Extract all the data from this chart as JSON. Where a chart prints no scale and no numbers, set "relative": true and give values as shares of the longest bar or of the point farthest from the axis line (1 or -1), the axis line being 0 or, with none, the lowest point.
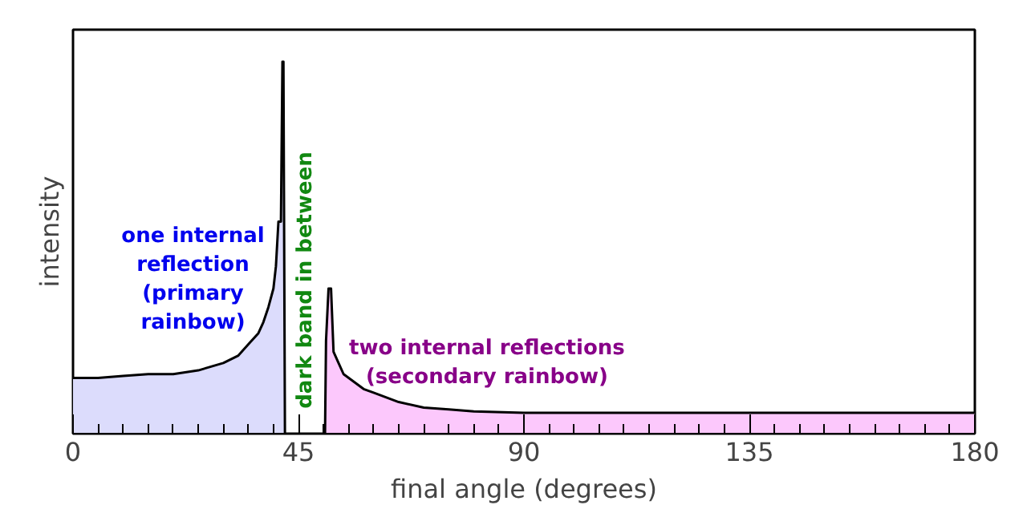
{
  "chart_data": {
    "type": "area",
    "relative": true,
    "xlabel": "final angle (degrees)",
    "ylabel": "intensity",
    "xlim": [
      0,
      180
    ],
    "xticks": [
      0,
      45,
      90,
      135,
      180
    ],
    "grid": false,
    "series": [
      {
        "color": "#dcdcfc",
        "x": [
          0,
          5,
          10,
          15,
          20,
          25,
          30,
          33,
          35,
          37,
          38,
          39,
          40,
          40.5,
          41,
          41.5,
          41.8,
          42,
          42.3
        ],
        "values": [
          0.15,
          0.15,
          0.155,
          0.16,
          0.16,
          0.17,
          0.19,
          0.21,
          0.24,
          0.27,
          0.3,
          0.34,
          0.39,
          0.45,
          0.57,
          0.57,
          1.0,
          1.0,
          0
        ]
      },
      {
        "color": "#fcc8fc",
        "x": [
          50.3,
          50.5,
          51,
          51.5,
          52,
          53,
          54,
          56,
          58,
          60,
          65,
          70,
          75,
          80,
          90,
          100,
          120,
          140,
          160,
          180
        ],
        "values": [
          0,
          0.25,
          0.39,
          0.39,
          0.22,
          0.19,
          0.16,
          0.14,
          0.12,
          0.11,
          0.085,
          0.07,
          0.065,
          0.06,
          0.056,
          0.056,
          0.056,
          0.056,
          0.056,
          0.056
        ]
      }
    ],
    "annotations": [
      "one internal\nreflection\n(primary\nrainbow)",
      "dark band in between",
      "two internal reflections\n(secondary rainbow)"
    ]
  }
}
